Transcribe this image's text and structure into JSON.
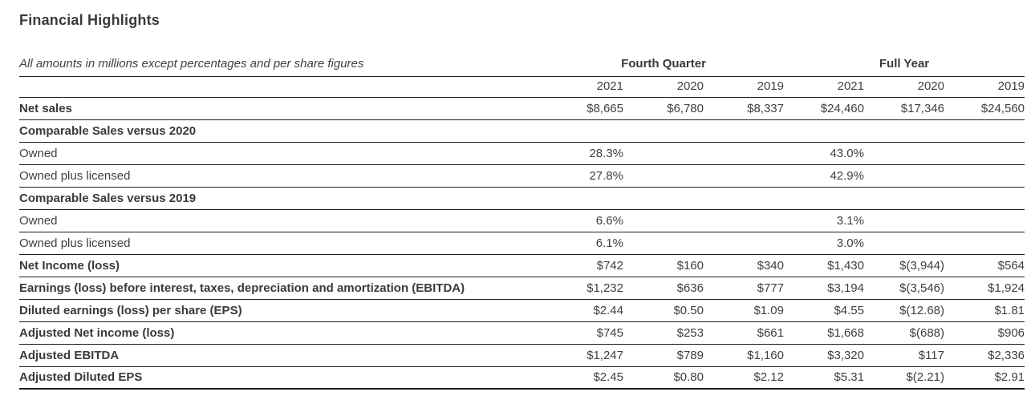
{
  "title": "Financial Highlights",
  "subtitle": "All amounts in millions except percentages and per share figures",
  "table": {
    "group_headers": [
      {
        "label": "Fourth Quarter"
      },
      {
        "label": "Full Year"
      }
    ],
    "year_headers": [
      "2021",
      "2020",
      "2019",
      "2021",
      "2020",
      "2019"
    ],
    "rows": [
      {
        "label": "Net sales",
        "bold": true,
        "values": [
          "$8,665",
          "$6,780",
          "$8,337",
          "$24,460",
          "$17,346",
          "$24,560"
        ]
      },
      {
        "label": "Comparable Sales versus 2020",
        "bold": true,
        "values": [
          "",
          "",
          "",
          "",
          "",
          ""
        ]
      },
      {
        "label": "Owned",
        "bold": false,
        "values": [
          "28.3%",
          "",
          "",
          "43.0%",
          "",
          ""
        ]
      },
      {
        "label": "Owned plus licensed",
        "bold": false,
        "values": [
          "27.8%",
          "",
          "",
          "42.9%",
          "",
          ""
        ]
      },
      {
        "label": "Comparable Sales versus 2019",
        "bold": true,
        "values": [
          "",
          "",
          "",
          "",
          "",
          ""
        ]
      },
      {
        "label": "Owned",
        "bold": false,
        "values": [
          "6.6%",
          "",
          "",
          "3.1%",
          "",
          ""
        ]
      },
      {
        "label": "Owned plus licensed",
        "bold": false,
        "values": [
          "6.1%",
          "",
          "",
          "3.0%",
          "",
          ""
        ]
      },
      {
        "label": "Net Income (loss)",
        "bold": true,
        "values": [
          "$742",
          "$160",
          "$340",
          "$1,430",
          "$(3,944)",
          "$564"
        ]
      },
      {
        "label": "Earnings (loss) before interest, taxes, depreciation and amortization (EBITDA)",
        "bold": true,
        "values": [
          "$1,232",
          "$636",
          "$777",
          "$3,194",
          "$(3,546)",
          "$1,924"
        ]
      },
      {
        "label": "Diluted earnings (loss) per share (EPS)",
        "bold": true,
        "values": [
          "$2.44",
          "$0.50",
          "$1.09",
          "$4.55",
          "$(12.68)",
          "$1.81"
        ]
      },
      {
        "label": "Adjusted Net income (loss)",
        "bold": true,
        "values": [
          "$745",
          "$253",
          "$661",
          "$1,668",
          "$(688)",
          "$906"
        ]
      },
      {
        "label": "Adjusted EBITDA",
        "bold": true,
        "values": [
          "$1,247",
          "$789",
          "$1,160",
          "$3,320",
          "$117",
          "$2,336"
        ]
      },
      {
        "label": "Adjusted Diluted EPS",
        "bold": true,
        "values": [
          "$2.45",
          "$0.80",
          "$2.12",
          "$5.31",
          "$(2.21)",
          "$2.91"
        ]
      }
    ]
  },
  "colors": {
    "text_color": "#3f3f3f",
    "line_color": "#1e1e1e",
    "background_color": "#ffffff"
  }
}
